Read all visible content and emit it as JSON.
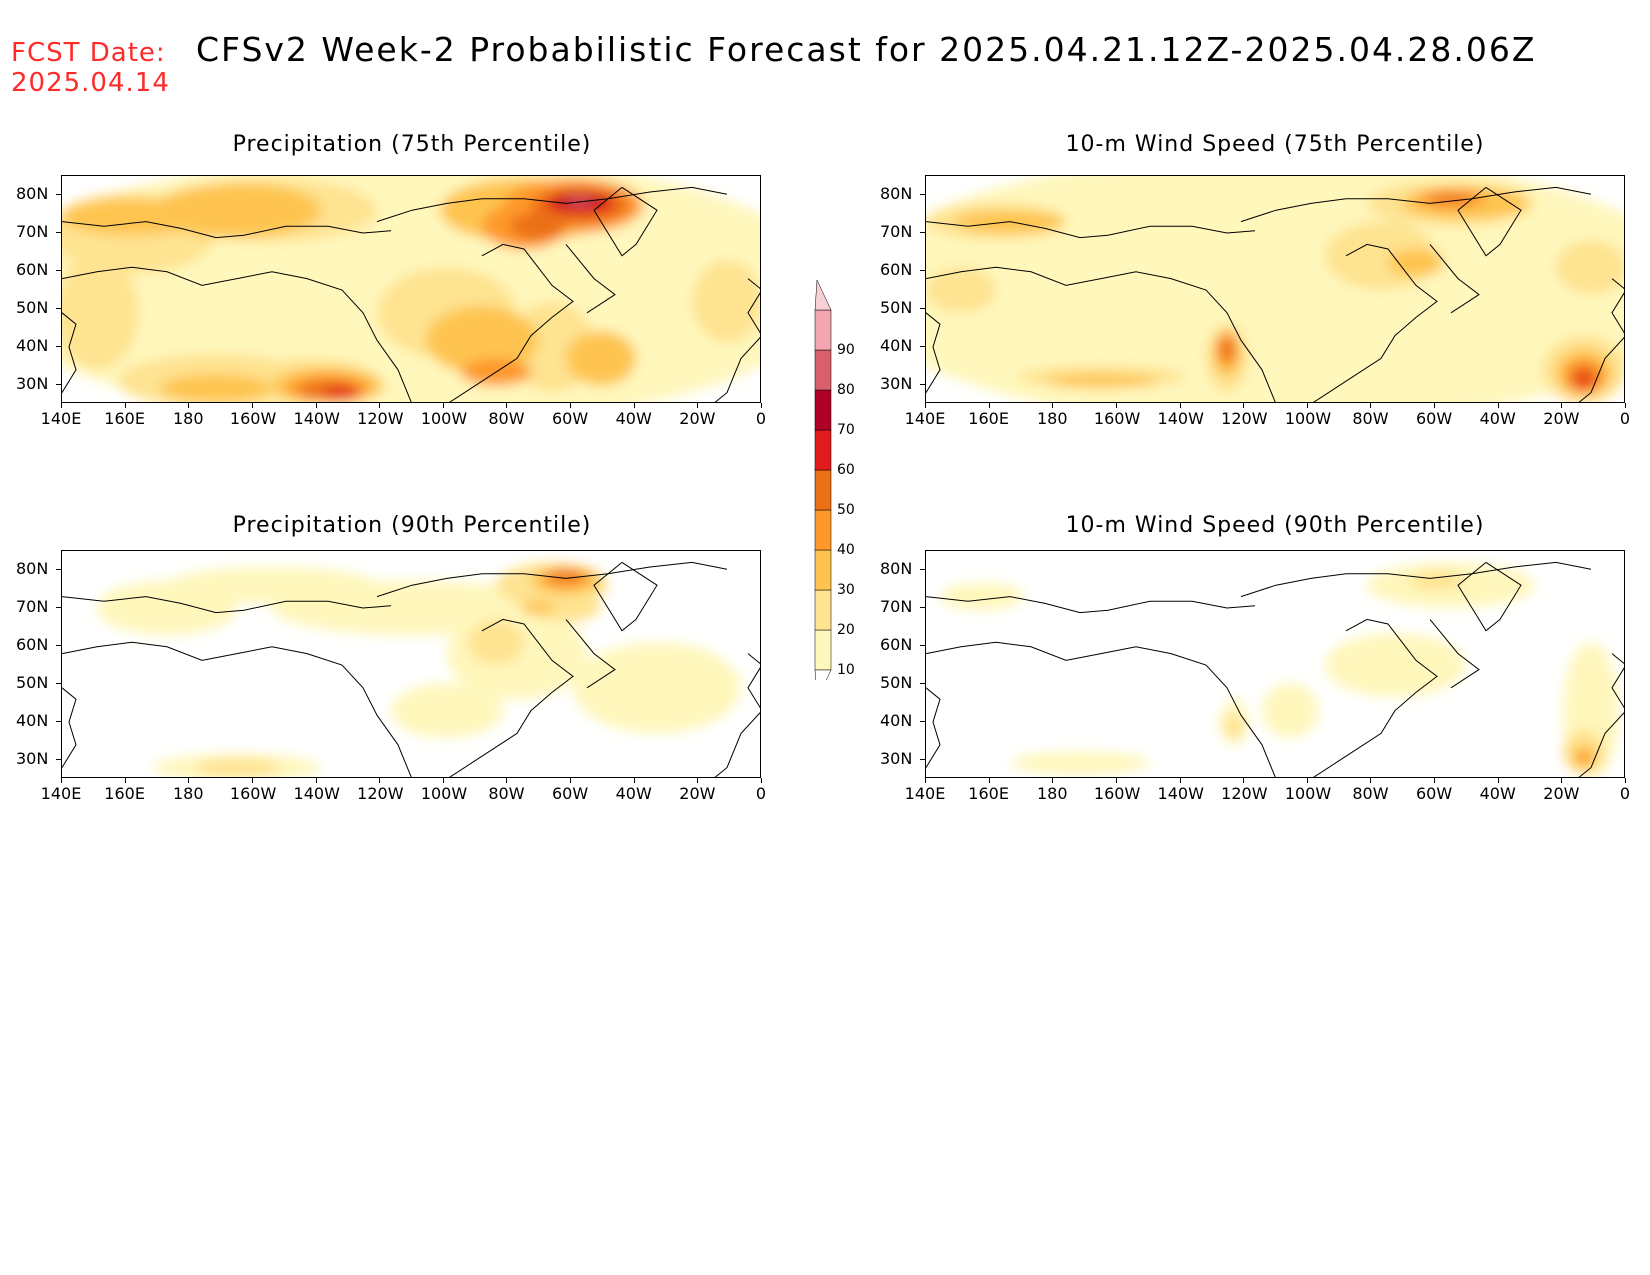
{
  "header": {
    "fcst_label": "FCST Date:",
    "fcst_date": "2025.04.14",
    "title": "CFSv2 Week-2 Probabilistic Forecast for 2025.04.21.12Z-2025.04.28.06Z"
  },
  "axes": {
    "x_labels": [
      "140E",
      "160E",
      "180",
      "160W",
      "140W",
      "120W",
      "100W",
      "80W",
      "60W",
      "40W",
      "20W",
      "0"
    ],
    "y_labels": [
      "80N",
      "70N",
      "60N",
      "50N",
      "40N",
      "30N"
    ]
  },
  "panels": [
    {
      "id": "precip75",
      "title": "Precipitation (75th Percentile)",
      "coverage": "high"
    },
    {
      "id": "wind75",
      "title": "10-m Wind Speed (75th Percentile)",
      "coverage": "medium"
    },
    {
      "id": "precip90",
      "title": "Precipitation (90th Percentile)",
      "coverage": "low"
    },
    {
      "id": "wind90",
      "title": "10-m Wind Speed (90th Percentile)",
      "coverage": "verylow"
    }
  ],
  "colorbar": {
    "levels": [
      "10",
      "20",
      "30",
      "40",
      "50",
      "60",
      "70",
      "80",
      "90"
    ],
    "colors": [
      "#fff7bc",
      "#fee391",
      "#fec44f",
      "#fe9929",
      "#ec7014",
      "#e31a1c",
      "#b10026",
      "#d9606b",
      "#f2a6b0"
    ]
  }
}
